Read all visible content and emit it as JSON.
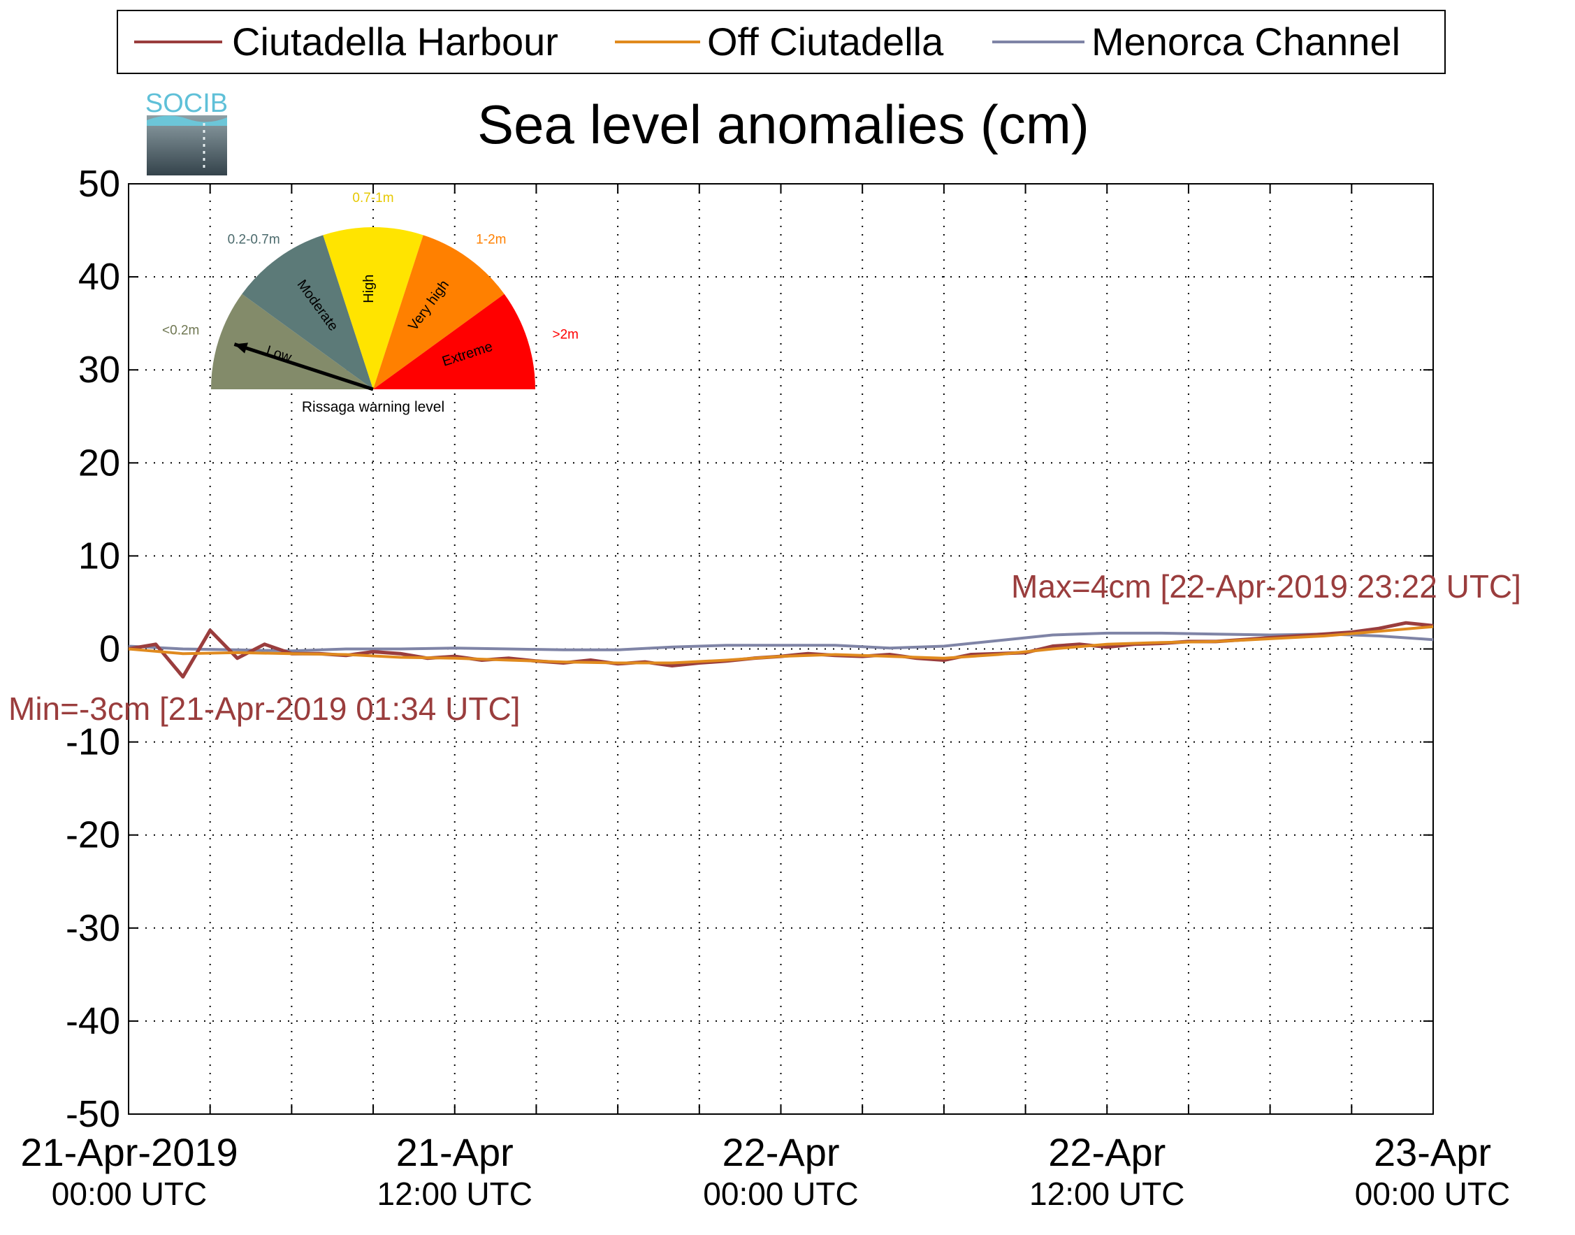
{
  "chart_data": {
    "type": "line",
    "title": "Sea level anomalies (cm)",
    "xlabel": "",
    "ylabel": "",
    "ylim": [
      -50,
      50
    ],
    "yticks": [
      50,
      40,
      30,
      20,
      10,
      0,
      -10,
      -20,
      -30,
      -40,
      -50
    ],
    "yticklabels": [
      "50",
      "40",
      "30",
      "20",
      "10",
      "0",
      "-10",
      "-20",
      "-30",
      "-40",
      "-50"
    ],
    "xlim": [
      "2019-04-21 00:00",
      "2019-04-23 00:00"
    ],
    "xticks": [
      {
        "date_line": "21-Apr-2019",
        "time_line": "00:00 UTC",
        "x": "2019-04-21 00:00"
      },
      {
        "date_line": "21-Apr",
        "time_line": "12:00 UTC",
        "x": "2019-04-21 12:00"
      },
      {
        "date_line": "22-Apr",
        "time_line": "00:00 UTC",
        "x": "2019-04-22 00:00"
      },
      {
        "date_line": "22-Apr",
        "time_line": "12:00 UTC",
        "x": "2019-04-22 12:00"
      },
      {
        "date_line": "23-Apr",
        "time_line": "00:00 UTC",
        "x": "2019-04-23 00:00"
      }
    ],
    "grid": true,
    "legend_position": "top",
    "series": [
      {
        "name": "Ciutadella Harbour",
        "color": "#9a3d3d",
        "x": [
          "2019-04-21 00:00",
          "2019-04-21 01:00",
          "2019-04-21 02:00",
          "2019-04-21 03:00",
          "2019-04-21 04:00",
          "2019-04-21 05:00",
          "2019-04-21 06:00",
          "2019-04-21 07:00",
          "2019-04-21 08:00",
          "2019-04-21 09:00",
          "2019-04-21 10:00",
          "2019-04-21 11:00",
          "2019-04-21 12:00",
          "2019-04-21 13:00",
          "2019-04-21 14:00",
          "2019-04-21 15:00",
          "2019-04-21 16:00",
          "2019-04-21 17:00",
          "2019-04-21 18:00",
          "2019-04-21 19:00",
          "2019-04-21 20:00",
          "2019-04-21 21:00",
          "2019-04-21 22:00",
          "2019-04-21 23:00",
          "2019-04-22 00:00",
          "2019-04-22 01:00",
          "2019-04-22 02:00",
          "2019-04-22 03:00",
          "2019-04-22 04:00",
          "2019-04-22 05:00",
          "2019-04-22 06:00",
          "2019-04-22 07:00",
          "2019-04-22 08:00",
          "2019-04-22 09:00",
          "2019-04-22 10:00",
          "2019-04-22 11:00",
          "2019-04-22 12:00",
          "2019-04-22 13:00",
          "2019-04-22 14:00",
          "2019-04-22 15:00",
          "2019-04-22 16:00",
          "2019-04-22 17:00",
          "2019-04-22 18:00",
          "2019-04-22 19:00",
          "2019-04-22 20:00",
          "2019-04-22 21:00",
          "2019-04-22 22:00",
          "2019-04-22 23:00",
          "2019-04-23 00:00"
        ],
        "y": [
          0,
          0.5,
          -3,
          2,
          -1,
          0.5,
          -0.5,
          -0.5,
          -0.7,
          -0.3,
          -0.5,
          -1,
          -0.8,
          -1.2,
          -1,
          -1.3,
          -1.5,
          -1.2,
          -1.6,
          -1.4,
          -1.8,
          -1.5,
          -1.3,
          -1,
          -0.8,
          -0.5,
          -0.7,
          -0.8,
          -0.6,
          -1,
          -1.2,
          -0.6,
          -0.5,
          -0.4,
          0.3,
          0.5,
          0.2,
          0.5,
          0.6,
          0.8,
          0.8,
          1,
          1.2,
          1.4,
          1.6,
          1.8,
          2.2,
          2.8,
          2.5
        ]
      },
      {
        "name": "Off Ciutadella",
        "color": "#e08a1e",
        "x": [
          "2019-04-21 00:00",
          "2019-04-21 02:00",
          "2019-04-21 04:00",
          "2019-04-21 06:00",
          "2019-04-21 08:00",
          "2019-04-21 10:00",
          "2019-04-21 12:00",
          "2019-04-21 14:00",
          "2019-04-21 16:00",
          "2019-04-21 18:00",
          "2019-04-21 20:00",
          "2019-04-21 22:00",
          "2019-04-22 00:00",
          "2019-04-22 02:00",
          "2019-04-22 04:00",
          "2019-04-22 06:00",
          "2019-04-22 08:00",
          "2019-04-22 10:00",
          "2019-04-22 12:00",
          "2019-04-22 14:00",
          "2019-04-22 16:00",
          "2019-04-22 18:00",
          "2019-04-22 20:00",
          "2019-04-22 22:00",
          "2019-04-23 00:00"
        ],
        "y": [
          0,
          -0.5,
          -0.4,
          -0.5,
          -0.6,
          -0.9,
          -1,
          -1.2,
          -1.4,
          -1.5,
          -1.5,
          -1.2,
          -0.8,
          -0.6,
          -0.8,
          -1,
          -0.6,
          0,
          0.5,
          0.7,
          0.8,
          1.1,
          1.4,
          1.9,
          2.4
        ]
      },
      {
        "name": "Menorca Channel",
        "color": "#7f84a6",
        "x": [
          "2019-04-21 00:00",
          "2019-04-21 02:00",
          "2019-04-21 04:00",
          "2019-04-21 06:00",
          "2019-04-21 08:00",
          "2019-04-21 10:00",
          "2019-04-21 12:00",
          "2019-04-21 14:00",
          "2019-04-21 16:00",
          "2019-04-21 18:00",
          "2019-04-21 20:00",
          "2019-04-21 22:00",
          "2019-04-22 00:00",
          "2019-04-22 02:00",
          "2019-04-22 04:00",
          "2019-04-22 06:00",
          "2019-04-22 08:00",
          "2019-04-22 10:00",
          "2019-04-22 12:00",
          "2019-04-22 14:00",
          "2019-04-22 16:00",
          "2019-04-22 18:00",
          "2019-04-22 20:00",
          "2019-04-22 22:00",
          "2019-04-23 00:00"
        ],
        "y": [
          0.3,
          0,
          -0.1,
          -0.2,
          0,
          0,
          0.1,
          0,
          -0.1,
          -0.1,
          0.2,
          0.4,
          0.4,
          0.4,
          0.1,
          0.3,
          0.9,
          1.5,
          1.7,
          1.7,
          1.6,
          1.5,
          1.6,
          1.4,
          1.0
        ]
      }
    ],
    "annotations": [
      {
        "text": "Max=4cm [22-Apr-2019 23:22 UTC]",
        "color": "#9a3d3d"
      },
      {
        "text": "Min=-3cm [21-Apr-2019 01:34 UTC]",
        "color": "#9a3d3d"
      }
    ]
  },
  "logo": {
    "text": "SOCIB"
  },
  "gauge": {
    "caption": "Rissaga warning level",
    "needle_level": 0.1,
    "sectors": [
      {
        "label": "Low",
        "range_label": "<0.2m",
        "color": "#838b6a",
        "range_color": "#6f7752"
      },
      {
        "label": "Moderate",
        "range_label": "0.2-0.7m",
        "color": "#5c7a78",
        "range_color": "#4b6a6c"
      },
      {
        "label": "High",
        "range_label": "0.7-1m",
        "color": "#ffe400",
        "range_color": "#e6c800"
      },
      {
        "label": "Very high",
        "range_label": "1-2m",
        "color": "#ff8000",
        "range_color": "#ff8000"
      },
      {
        "label": "Extreme",
        "range_label": ">2m",
        "color": "#ff0000",
        "range_color": "#ff0000"
      }
    ]
  }
}
